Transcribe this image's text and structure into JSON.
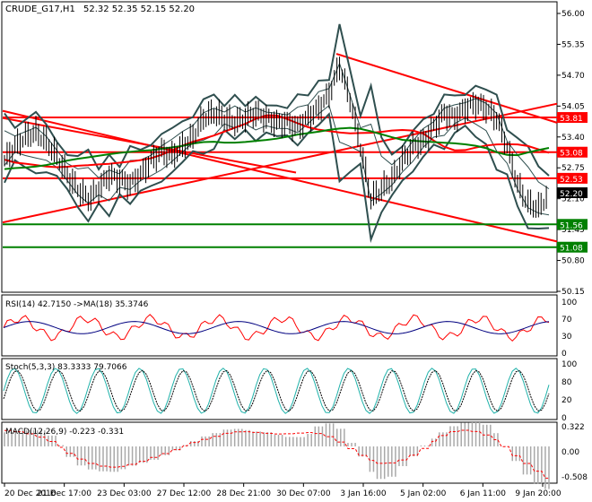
{
  "main": {
    "title": "CRUDE_G17,H1",
    "ohlc": "52.32 52.35 52.15 52.20",
    "y_ticks": [
      "56.00",
      "55.35",
      "54.70",
      "54.05",
      "53.40",
      "52.75",
      "52.10",
      "51.45",
      "50.80",
      "50.15"
    ],
    "levels": [
      {
        "label": "53.81",
        "value": 53.81,
        "color": "#ff0000"
      },
      {
        "label": "53.08",
        "value": 53.08,
        "color": "#ff0000"
      },
      {
        "label": "52.53",
        "value": 52.53,
        "color": "#ff0000"
      },
      {
        "label": "51.56",
        "value": 51.56,
        "color": "#008000"
      },
      {
        "label": "51.08",
        "value": 51.08,
        "color": "#008000"
      }
    ],
    "current_price": "52.20"
  },
  "rsi": {
    "label": "RSI(14) 42.7150 ->MA(18) 35.3746",
    "ticks": [
      "100",
      "70",
      "30",
      "0"
    ]
  },
  "stoch": {
    "label": "Stoch(5,3,3) 83.3333 79.7066",
    "ticks": [
      "100",
      "80",
      "20",
      "0"
    ]
  },
  "macd": {
    "label": "MACD(12,26,9) -0.223 -0.331",
    "ticks": [
      "0.322",
      "0.00",
      "-0.508"
    ]
  },
  "x_ticks": [
    "20 Dec 2016",
    "21 Dec 17:00",
    "23 Dec 03:00",
    "27 Dec 12:00",
    "28 Dec 21:00",
    "30 Dec 07:00",
    "3 Jan 16:00",
    "5 Jan 02:00",
    "6 Jan 11:00",
    "9 Jan 20:00"
  ],
  "chart_data": {
    "type": "line",
    "symbol": "CRUDE_G17",
    "timeframe": "H1",
    "ohlc_last": {
      "open": 52.32,
      "high": 52.35,
      "low": 52.15,
      "close": 52.2
    },
    "ylim": [
      50.15,
      56.0
    ],
    "approx_close_series": [
      52.9,
      53.2,
      53.4,
      53.5,
      53.3,
      53.0,
      52.6,
      52.3,
      52.1,
      52.3,
      52.6,
      52.5,
      52.4,
      52.6,
      52.9,
      53.1,
      53.0,
      53.2,
      53.4,
      53.8,
      53.9,
      53.8,
      53.7,
      53.8,
      53.9,
      53.8,
      53.7,
      53.7,
      53.6,
      53.8,
      54.0,
      54.3,
      54.9,
      54.2,
      53.2,
      52.1,
      52.3,
      52.5,
      52.9,
      53.2,
      53.3,
      53.6,
      53.9,
      53.8,
      54.0,
      54.1,
      54.0,
      53.8,
      53.2,
      52.4,
      52.0,
      51.9,
      52.2
    ],
    "support_resistance": [
      53.81,
      53.08,
      52.53,
      51.56,
      51.08
    ],
    "indicators": [
      {
        "name": "RSI(14)",
        "value": 42.715,
        "ma_period": 18,
        "ma": 35.3746,
        "ylim": [
          0,
          100
        ]
      },
      {
        "name": "Stoch(5,3,3)",
        "k": 83.3333,
        "d": 79.7066,
        "ylim": [
          0,
          100
        ]
      },
      {
        "name": "MACD(12,26,9)",
        "macd": -0.223,
        "signal": -0.331,
        "ylim": [
          -0.508,
          0.322
        ]
      }
    ]
  }
}
